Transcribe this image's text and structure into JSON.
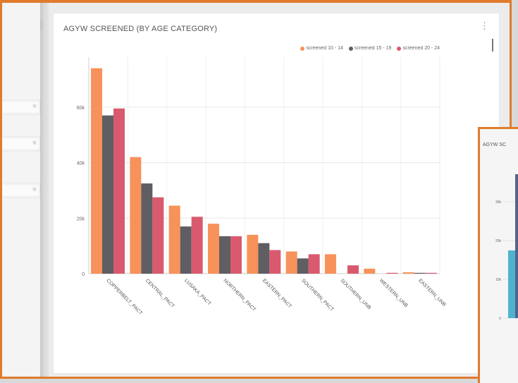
{
  "chart_card": {
    "title": "AGYW SCREENED (BY AGE CATEGORY)",
    "menu_icon": "kebab-icon"
  },
  "chart_data": {
    "type": "bar",
    "title": "AGYW SCREENED (BY AGE CATEGORY)",
    "categories": [
      "COPPERBELT_PACT",
      "CENTRAL_PACT",
      "LUSAKA_PACT",
      "NORTHERN_PACT",
      "EASTERN_PACT",
      "SOUTHERN_PACT",
      "SOUTHERN_UNB",
      "WESTERN_UNB",
      "EASTERN_UNB"
    ],
    "series": [
      {
        "name": "screened 10 - 14",
        "color": "#f7925a",
        "values": [
          74000,
          42000,
          24500,
          18000,
          14000,
          8000,
          7000,
          1800,
          500
        ]
      },
      {
        "name": "screened 15 - 19",
        "color": "#5f5e63",
        "values": [
          57000,
          32500,
          17000,
          13500,
          11000,
          5500,
          0,
          0,
          300
        ]
      },
      {
        "name": "screened 20 - 24",
        "color": "#d95a6e",
        "values": [
          59500,
          27500,
          20500,
          13500,
          8500,
          7000,
          3000,
          300,
          300
        ]
      }
    ],
    "yticks": [
      0,
      20000,
      40000,
      60000
    ],
    "ytick_labels": [
      "0",
      "20k",
      "40k",
      "60k"
    ],
    "ylim": [
      0,
      78000
    ],
    "grid": true,
    "legend_position": "top-right"
  },
  "second_chart": {
    "title": "AGYW SC",
    "ytick_labels": [
      "0",
      "10k",
      "20k",
      "30k"
    ],
    "colors": [
      "#4fb3cf",
      "#55628a"
    ]
  },
  "filters": {
    "count": 3
  }
}
